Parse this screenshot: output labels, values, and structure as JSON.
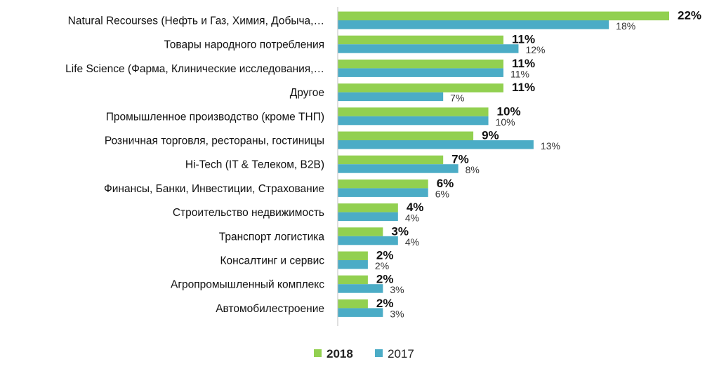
{
  "chart_data": {
    "type": "bar",
    "orientation": "horizontal",
    "categories": [
      "Natural Recourses (Нефть и Газ, Химия,  Добыча,…",
      "Товары народного потребления",
      "Life Science (Фарма, Клинические исследования,…",
      "Другое",
      "Промышленное производство (кроме ТНП)",
      "Розничная торговля, рестораны, гостиницы",
      "Hi-Tech (IT & Телеком, B2B)",
      "Финансы, Банки, Инвестиции, Страхование",
      "Строительство недвижимость",
      "Транспорт логистика",
      "Консалтинг и сервис",
      "Агропромышленный комплекс",
      "Автомобилестроение"
    ],
    "series": [
      {
        "name": "2018",
        "color": "#92D050",
        "values": [
          22,
          11,
          11,
          11,
          10,
          9,
          7,
          6,
          4,
          3,
          2,
          2,
          2
        ],
        "labels": [
          "22%",
          "11%",
          "11%",
          "11%",
          "10%",
          "9%",
          "7%",
          "6%",
          "4%",
          "3%",
          "2%",
          "2%",
          "2%"
        ]
      },
      {
        "name": "2017",
        "color": "#4BACC6",
        "values": [
          18,
          12,
          11,
          7,
          10,
          13,
          8,
          6,
          4,
          4,
          2,
          3,
          3
        ],
        "labels": [
          "18%",
          "12%",
          "11%",
          "7%",
          "10%",
          "13%",
          "8%",
          "6%",
          "4%",
          "4%",
          "2%",
          "3%",
          "3%"
        ]
      }
    ],
    "title": "",
    "xlabel": "",
    "ylabel": "",
    "xlim": [
      0,
      22
    ],
    "grid": false,
    "legend_position": "bottom"
  }
}
